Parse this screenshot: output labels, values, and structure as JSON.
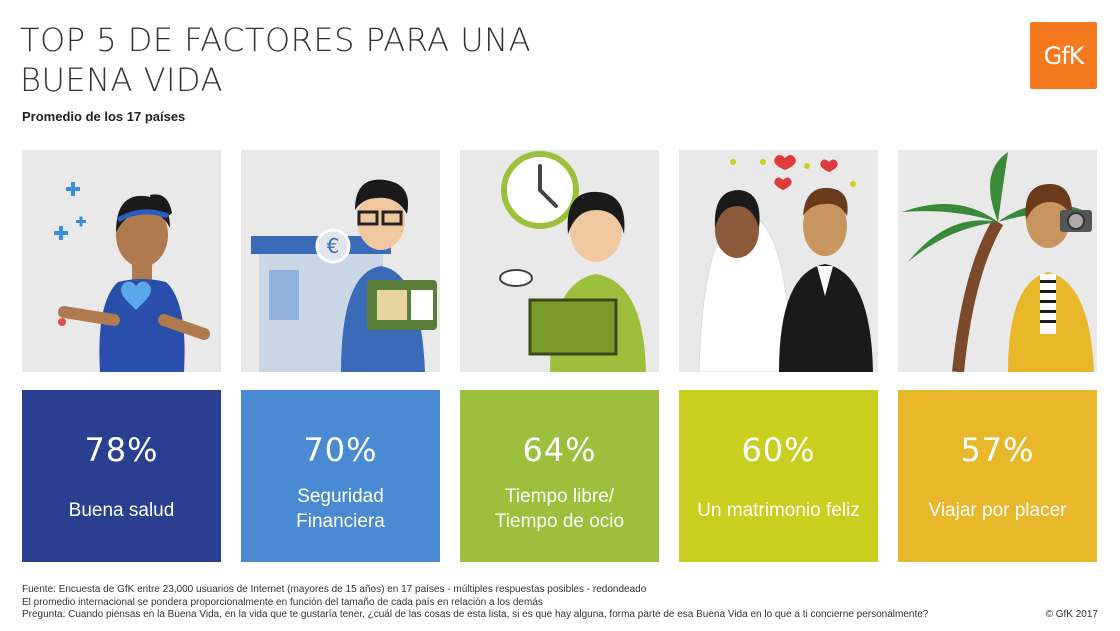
{
  "header": {
    "title_line1": "TOP 5 DE FACTORES PARA UNA",
    "title_line2": "BUENA VIDA",
    "subtitle": "Promedio de los 17 países",
    "logo_text": "GfK"
  },
  "factors": [
    {
      "percent": "78%",
      "label": "Buena salud",
      "color": "#2a3f8f",
      "icon": "health-woman-illustration"
    },
    {
      "percent": "70%",
      "label_line1": "Seguridad",
      "label_line2": "Financiera",
      "color": "#4a8ad2",
      "icon": "finance-man-illustration"
    },
    {
      "percent": "64%",
      "label_line1": "Tiempo libre/",
      "label_line2": "Tiempo de ocio",
      "color": "#9cc03c",
      "icon": "leisure-clock-illustration"
    },
    {
      "percent": "60%",
      "label": "Un matrimonio feliz",
      "color": "#c9cf1e",
      "icon": "wedding-couple-illustration"
    },
    {
      "percent": "57%",
      "label": "Viajar por placer",
      "color": "#e8b82a",
      "icon": "travel-camera-illustration"
    }
  ],
  "footer": {
    "line1": "Fuente: Encuesta de GfK entre 23,000 usuarios de Internet (mayores de 15 años) en 17 países - múltiples respuestas posibles - redondeado",
    "line2": "El promedio internacional se pondera proporcionalmente en función del tamaño de cada país en relación a los demás",
    "line3": "Pregunta: Cuando piensas en la Buena Vida, en la vida que te gustaría tener, ¿cuál de las cosas de esta lista, si es que hay alguna, forma parte de esa Buena Vida en lo que a ti concierne personalmente?",
    "copyright": "© GfK 2017"
  }
}
